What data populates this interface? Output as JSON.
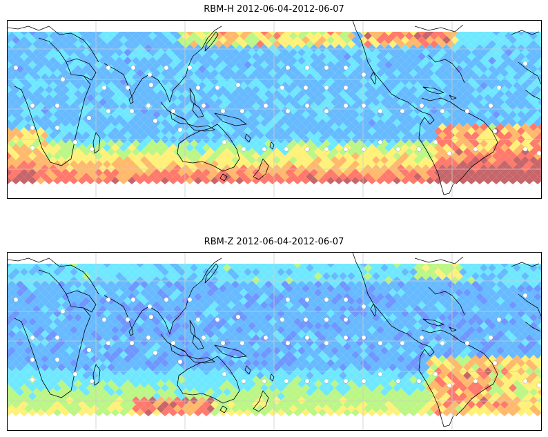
{
  "panels": [
    {
      "title": "RBM-H 2012-06-04-2012-06-07",
      "field": "rbm-h"
    },
    {
      "title": "RBM-Z 2012-06-04-2012-06-07",
      "field": "rbm-z"
    }
  ],
  "colormap": [
    "#6a5cff",
    "#5f8cff",
    "#56b2ff",
    "#5fe6ff",
    "#b4f57a",
    "#fff06a",
    "#ffb15c",
    "#ff6a5c",
    "#c0555a"
  ],
  "grid_color": "#cccccc",
  "coast_color": "#000000",
  "marker_color": "#ffffff"
}
